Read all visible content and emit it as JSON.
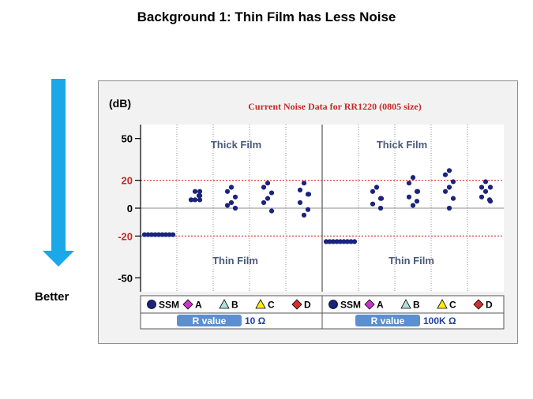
{
  "page": {
    "title": "Background 1: Thin Film has Less Noise",
    "side_label": "Better"
  },
  "colors": {
    "marker": "#1a237e",
    "reference_line": "#e0281e",
    "chart_title": "#c62828",
    "arrow": "#1aa8e8",
    "region_label": "#4a5a78",
    "axis_label_red": "#c62828",
    "r_value_pill": "#5b8fcf",
    "r_value_text": "#1f3fa0"
  },
  "chart_data": {
    "type": "scatter",
    "title": "Current Noise Data for RR1220 (0805 size)",
    "ylabel": "(dB)",
    "ylim": [
      -60,
      60
    ],
    "yticks": [
      {
        "value": 50,
        "label": "50",
        "color": "black"
      },
      {
        "value": 20,
        "label": "20",
        "color": "red"
      },
      {
        "value": 0,
        "label": "0",
        "color": "black"
      },
      {
        "value": -20,
        "label": "-20",
        "color": "red"
      },
      {
        "value": -50,
        "label": "-50",
        "color": "black"
      }
    ],
    "reference_lines": [
      20,
      -20
    ],
    "region_labels": [
      "Thick Film",
      "Thin Film"
    ],
    "legend": [
      {
        "label": "SSM",
        "marker": "circle",
        "color": "#1a237e"
      },
      {
        "label": "A",
        "marker": "diamond",
        "color": "#cc33cc"
      },
      {
        "label": "B",
        "marker": "triangle",
        "color": "#b2dfdb"
      },
      {
        "label": "C",
        "marker": "triangle",
        "color": "#ffee00"
      },
      {
        "label": "D",
        "marker": "diamond",
        "color": "#d32f2f"
      }
    ],
    "r_value_label": "R value",
    "groups": [
      {
        "r_value": "10 Ω",
        "series": [
          {
            "name": "SSM",
            "values": [
              -19,
              -19,
              -19,
              -19,
              -19,
              -19,
              -19,
              -19,
              -19
            ]
          },
          {
            "name": "A",
            "values": [
              12,
              12,
              9,
              9,
              6,
              6,
              6
            ]
          },
          {
            "name": "B",
            "values": [
              15,
              12,
              8,
              4,
              2,
              0
            ]
          },
          {
            "name": "C",
            "values": [
              18,
              15,
              11,
              7,
              4,
              -2
            ]
          },
          {
            "name": "D",
            "values": [
              18,
              13,
              10,
              10,
              4,
              -1,
              -5
            ]
          }
        ]
      },
      {
        "r_value": "100K Ω",
        "series": [
          {
            "name": "SSM",
            "values": [
              -24,
              -24,
              -24,
              -24,
              -24,
              -24,
              -24,
              -24,
              -24
            ]
          },
          {
            "name": "A",
            "values": [
              15,
              12,
              7,
              7,
              3,
              0
            ]
          },
          {
            "name": "B",
            "values": [
              22,
              18,
              12,
              12,
              8,
              5,
              2
            ]
          },
          {
            "name": "C",
            "values": [
              27,
              24,
              19,
              15,
              12,
              7,
              0
            ]
          },
          {
            "name": "D",
            "values": [
              19,
              15,
              15,
              12,
              8,
              6,
              5
            ]
          }
        ]
      }
    ]
  }
}
